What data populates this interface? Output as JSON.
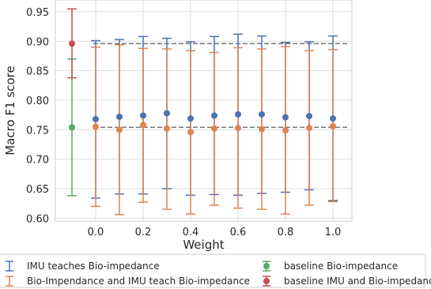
{
  "chart_data": {
    "type": "scatter",
    "xlabel": "Weight",
    "ylabel": "Macro F1 score",
    "xlim": [
      -0.17,
      1.08
    ],
    "ylim": [
      0.595,
      0.97
    ],
    "x_ticks": [
      0.0,
      0.2,
      0.4,
      0.6,
      0.8,
      1.0
    ],
    "x_tick_labels": [
      "0.0",
      "0.2",
      "0.4",
      "0.6",
      "0.8",
      "1.0"
    ],
    "y_ticks": [
      0.6,
      0.65,
      0.7,
      0.75,
      0.8,
      0.85,
      0.9,
      0.95
    ],
    "y_tick_labels": [
      "0.60",
      "0.65",
      "0.70",
      "0.75",
      "0.80",
      "0.85",
      "0.90",
      "0.95"
    ],
    "grid": true,
    "legend_placement": "bottom",
    "reference_lines": [
      0.896,
      0.754
    ],
    "series": [
      {
        "name": "IMU teaches Bio-impedance",
        "color": "#4C72B0",
        "x": [
          0.0,
          0.1,
          0.2,
          0.3,
          0.4,
          0.5,
          0.6,
          0.7,
          0.8,
          0.9,
          1.0
        ],
        "y": [
          0.768,
          0.772,
          0.774,
          0.778,
          0.769,
          0.774,
          0.776,
          0.776,
          0.771,
          0.773,
          0.769
        ],
        "err_low": [
          0.634,
          0.641,
          0.641,
          0.65,
          0.639,
          0.64,
          0.639,
          0.642,
          0.644,
          0.648,
          0.63
        ],
        "err_high": [
          0.901,
          0.903,
          0.908,
          0.905,
          0.899,
          0.908,
          0.912,
          0.909,
          0.898,
          0.899,
          0.909
        ]
      },
      {
        "name": "Bio-Impendance and IMU teach Bio-impedance",
        "color": "#DD8452",
        "x": [
          0.0,
          0.1,
          0.2,
          0.3,
          0.4,
          0.5,
          0.6,
          0.7,
          0.8,
          0.9,
          1.0
        ],
        "y": [
          0.755,
          0.75,
          0.758,
          0.752,
          0.746,
          0.752,
          0.753,
          0.751,
          0.749,
          0.753,
          0.756
        ],
        "err_low": [
          0.62,
          0.606,
          0.627,
          0.615,
          0.607,
          0.622,
          0.617,
          0.615,
          0.607,
          0.622,
          0.628
        ],
        "err_high": [
          0.89,
          0.894,
          0.888,
          0.887,
          0.884,
          0.881,
          0.889,
          0.887,
          0.891,
          0.884,
          0.886
        ]
      },
      {
        "name": "baseline Bio-impedance",
        "color": "#55A868",
        "x": [
          -0.1
        ],
        "y": [
          0.754
        ],
        "err_low": [
          0.638
        ],
        "err_high": [
          0.87
        ]
      },
      {
        "name": "baseline IMU and Bio-impedance",
        "color": "#C44E52",
        "x": [
          -0.1
        ],
        "y": [
          0.896
        ],
        "err_low": [
          0.838
        ],
        "err_high": [
          0.955
        ]
      }
    ]
  }
}
